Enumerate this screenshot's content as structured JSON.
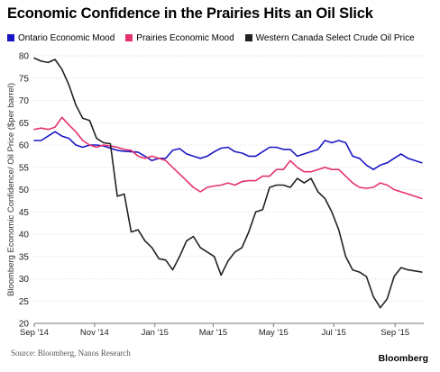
{
  "title": "Economic Confidence in the Prairies Hits an Oil Slick",
  "source": "Source: Bloomberg, Nanos Research",
  "brand": "Bloomberg",
  "chart_data": {
    "type": "line",
    "title": "Economic Confidence in the Prairies Hits an Oil Slick",
    "ylabel": "Bloomberg Economic Confidence/ Oil Price ($per barrel)",
    "xlabel": "",
    "ylim": [
      20,
      80
    ],
    "yticks": [
      20,
      25,
      30,
      35,
      40,
      45,
      50,
      55,
      60,
      65,
      70,
      75,
      80
    ],
    "xlim": [
      "2014-09-01",
      "2015-09-30"
    ],
    "xticks": [
      {
        "date": "2014-09-01",
        "label": "Sep '14"
      },
      {
        "date": "2014-11-01",
        "label": "Nov '14"
      },
      {
        "date": "2015-01-01",
        "label": "Jan '15"
      },
      {
        "date": "2015-03-01",
        "label": "Mar '15"
      },
      {
        "date": "2015-05-01",
        "label": "May '15"
      },
      {
        "date": "2015-07-01",
        "label": "Jul '15"
      },
      {
        "date": "2015-09-01",
        "label": "Sep '15"
      }
    ],
    "grid": true,
    "legend_position": "top",
    "series": [
      {
        "name": "Ontario Economic Mood",
        "color": "#1a17c4",
        "points": [
          [
            "2014-09-01",
            61.0
          ],
          [
            "2014-09-08",
            61.0
          ],
          [
            "2014-09-15",
            62.0
          ],
          [
            "2014-09-22",
            63.0
          ],
          [
            "2014-09-29",
            62.0
          ],
          [
            "2014-10-06",
            61.5
          ],
          [
            "2014-10-13",
            60.0
          ],
          [
            "2014-10-20",
            59.5
          ],
          [
            "2014-10-27",
            60.0
          ],
          [
            "2014-11-03",
            60.0
          ],
          [
            "2014-11-10",
            59.8
          ],
          [
            "2014-11-17",
            59.3
          ],
          [
            "2014-11-24",
            58.8
          ],
          [
            "2014-12-01",
            58.6
          ],
          [
            "2014-12-08",
            58.5
          ],
          [
            "2014-12-15",
            58.4
          ],
          [
            "2014-12-22",
            57.5
          ],
          [
            "2014-12-29",
            56.5
          ],
          [
            "2015-01-05",
            57.0
          ],
          [
            "2015-01-12",
            57.0
          ],
          [
            "2015-01-19",
            58.8
          ],
          [
            "2015-01-26",
            59.2
          ],
          [
            "2015-02-02",
            58.0
          ],
          [
            "2015-02-09",
            57.5
          ],
          [
            "2015-02-16",
            57.0
          ],
          [
            "2015-02-23",
            57.5
          ],
          [
            "2015-03-02",
            58.5
          ],
          [
            "2015-03-09",
            59.3
          ],
          [
            "2015-03-16",
            59.5
          ],
          [
            "2015-03-23",
            58.5
          ],
          [
            "2015-03-30",
            58.2
          ],
          [
            "2015-04-06",
            57.5
          ],
          [
            "2015-04-13",
            57.5
          ],
          [
            "2015-04-20",
            58.5
          ],
          [
            "2015-04-27",
            59.5
          ],
          [
            "2015-05-04",
            59.5
          ],
          [
            "2015-05-11",
            59.0
          ],
          [
            "2015-05-18",
            59.0
          ],
          [
            "2015-05-25",
            57.5
          ],
          [
            "2015-06-01",
            58.0
          ],
          [
            "2015-06-08",
            58.5
          ],
          [
            "2015-06-15",
            59.0
          ],
          [
            "2015-06-22",
            61.0
          ],
          [
            "2015-06-29",
            60.5
          ],
          [
            "2015-07-06",
            61.0
          ],
          [
            "2015-07-13",
            60.5
          ],
          [
            "2015-07-20",
            57.5
          ],
          [
            "2015-07-27",
            57.0
          ],
          [
            "2015-08-03",
            55.5
          ],
          [
            "2015-08-10",
            54.5
          ],
          [
            "2015-08-17",
            55.5
          ],
          [
            "2015-08-24",
            56.0
          ],
          [
            "2015-08-31",
            57.0
          ],
          [
            "2015-09-07",
            58.0
          ],
          [
            "2015-09-14",
            57.0
          ],
          [
            "2015-09-28",
            56.0
          ]
        ]
      },
      {
        "name": "Prairies Economic Mood",
        "color": "#e4326b",
        "points": [
          [
            "2014-09-01",
            63.5
          ],
          [
            "2014-09-08",
            63.8
          ],
          [
            "2014-09-15",
            63.5
          ],
          [
            "2014-09-22",
            64.0
          ],
          [
            "2014-09-29",
            66.2
          ],
          [
            "2014-10-06",
            64.5
          ],
          [
            "2014-10-13",
            63.0
          ],
          [
            "2014-10-20",
            61.0
          ],
          [
            "2014-10-27",
            60.0
          ],
          [
            "2014-11-03",
            59.5
          ],
          [
            "2014-11-10",
            60.0
          ],
          [
            "2014-11-17",
            59.8
          ],
          [
            "2014-11-24",
            59.5
          ],
          [
            "2014-12-01",
            59.0
          ],
          [
            "2014-12-08",
            58.8
          ],
          [
            "2014-12-15",
            57.5
          ],
          [
            "2014-12-22",
            57.0
          ],
          [
            "2014-12-29",
            57.5
          ],
          [
            "2015-01-05",
            57.0
          ],
          [
            "2015-01-12",
            56.5
          ],
          [
            "2015-01-19",
            55.0
          ],
          [
            "2015-01-26",
            53.5
          ],
          [
            "2015-02-02",
            52.0
          ],
          [
            "2015-02-09",
            50.5
          ],
          [
            "2015-02-16",
            49.5
          ],
          [
            "2015-02-23",
            50.5
          ],
          [
            "2015-03-02",
            50.8
          ],
          [
            "2015-03-09",
            51.0
          ],
          [
            "2015-03-16",
            51.5
          ],
          [
            "2015-03-23",
            51.0
          ],
          [
            "2015-03-30",
            51.8
          ],
          [
            "2015-04-06",
            52.0
          ],
          [
            "2015-04-13",
            52.0
          ],
          [
            "2015-04-20",
            53.0
          ],
          [
            "2015-04-27",
            53.0
          ],
          [
            "2015-05-04",
            54.5
          ],
          [
            "2015-05-11",
            54.5
          ],
          [
            "2015-05-18",
            56.5
          ],
          [
            "2015-05-25",
            55.0
          ],
          [
            "2015-06-01",
            54.0
          ],
          [
            "2015-06-08",
            54.0
          ],
          [
            "2015-06-15",
            54.5
          ],
          [
            "2015-06-22",
            55.0
          ],
          [
            "2015-06-29",
            54.5
          ],
          [
            "2015-07-06",
            54.5
          ],
          [
            "2015-07-13",
            53.0
          ],
          [
            "2015-07-20",
            51.5
          ],
          [
            "2015-07-27",
            50.5
          ],
          [
            "2015-08-03",
            50.3
          ],
          [
            "2015-08-10",
            50.5
          ],
          [
            "2015-08-17",
            51.5
          ],
          [
            "2015-08-24",
            51.0
          ],
          [
            "2015-08-31",
            50.0
          ],
          [
            "2015-09-07",
            49.5
          ],
          [
            "2015-09-14",
            49.0
          ],
          [
            "2015-09-28",
            48.0
          ]
        ]
      },
      {
        "name": "Western Canada Select Crude Oil Price",
        "color": "#222222",
        "points": [
          [
            "2014-09-01",
            79.5
          ],
          [
            "2014-09-08",
            78.8
          ],
          [
            "2014-09-15",
            78.5
          ],
          [
            "2014-09-22",
            79.2
          ],
          [
            "2014-09-29",
            77.0
          ],
          [
            "2014-10-06",
            73.5
          ],
          [
            "2014-10-13",
            69.0
          ],
          [
            "2014-10-20",
            66.0
          ],
          [
            "2014-10-27",
            65.5
          ],
          [
            "2014-11-03",
            61.5
          ],
          [
            "2014-11-10",
            60.5
          ],
          [
            "2014-11-17",
            60.3
          ],
          [
            "2014-11-24",
            48.5
          ],
          [
            "2014-12-01",
            49.0
          ],
          [
            "2014-12-08",
            40.5
          ],
          [
            "2014-12-15",
            41.0
          ],
          [
            "2014-12-22",
            38.5
          ],
          [
            "2014-12-29",
            37.0
          ],
          [
            "2015-01-05",
            34.5
          ],
          [
            "2015-01-12",
            34.2
          ],
          [
            "2015-01-19",
            32.0
          ],
          [
            "2015-01-26",
            35.0
          ],
          [
            "2015-02-02",
            38.5
          ],
          [
            "2015-02-09",
            39.5
          ],
          [
            "2015-02-16",
            37.0
          ],
          [
            "2015-02-23",
            36.0
          ],
          [
            "2015-03-02",
            35.0
          ],
          [
            "2015-03-09",
            30.8
          ],
          [
            "2015-03-16",
            34.0
          ],
          [
            "2015-03-23",
            36.0
          ],
          [
            "2015-03-30",
            37.0
          ],
          [
            "2015-04-06",
            40.5
          ],
          [
            "2015-04-13",
            45.0
          ],
          [
            "2015-04-20",
            45.5
          ],
          [
            "2015-04-27",
            50.5
          ],
          [
            "2015-05-04",
            51.0
          ],
          [
            "2015-05-11",
            51.0
          ],
          [
            "2015-05-18",
            50.5
          ],
          [
            "2015-05-25",
            52.5
          ],
          [
            "2015-06-01",
            51.5
          ],
          [
            "2015-06-08",
            52.5
          ],
          [
            "2015-06-15",
            49.5
          ],
          [
            "2015-06-22",
            48.0
          ],
          [
            "2015-06-29",
            45.0
          ],
          [
            "2015-07-06",
            41.0
          ],
          [
            "2015-07-13",
            35.0
          ],
          [
            "2015-07-20",
            32.0
          ],
          [
            "2015-07-27",
            31.5
          ],
          [
            "2015-08-03",
            30.5
          ],
          [
            "2015-08-10",
            26.0
          ],
          [
            "2015-08-17",
            23.5
          ],
          [
            "2015-08-24",
            25.5
          ],
          [
            "2015-08-31",
            30.5
          ],
          [
            "2015-09-07",
            32.5
          ],
          [
            "2015-09-14",
            32.0
          ],
          [
            "2015-09-28",
            31.5
          ]
        ]
      }
    ]
  }
}
